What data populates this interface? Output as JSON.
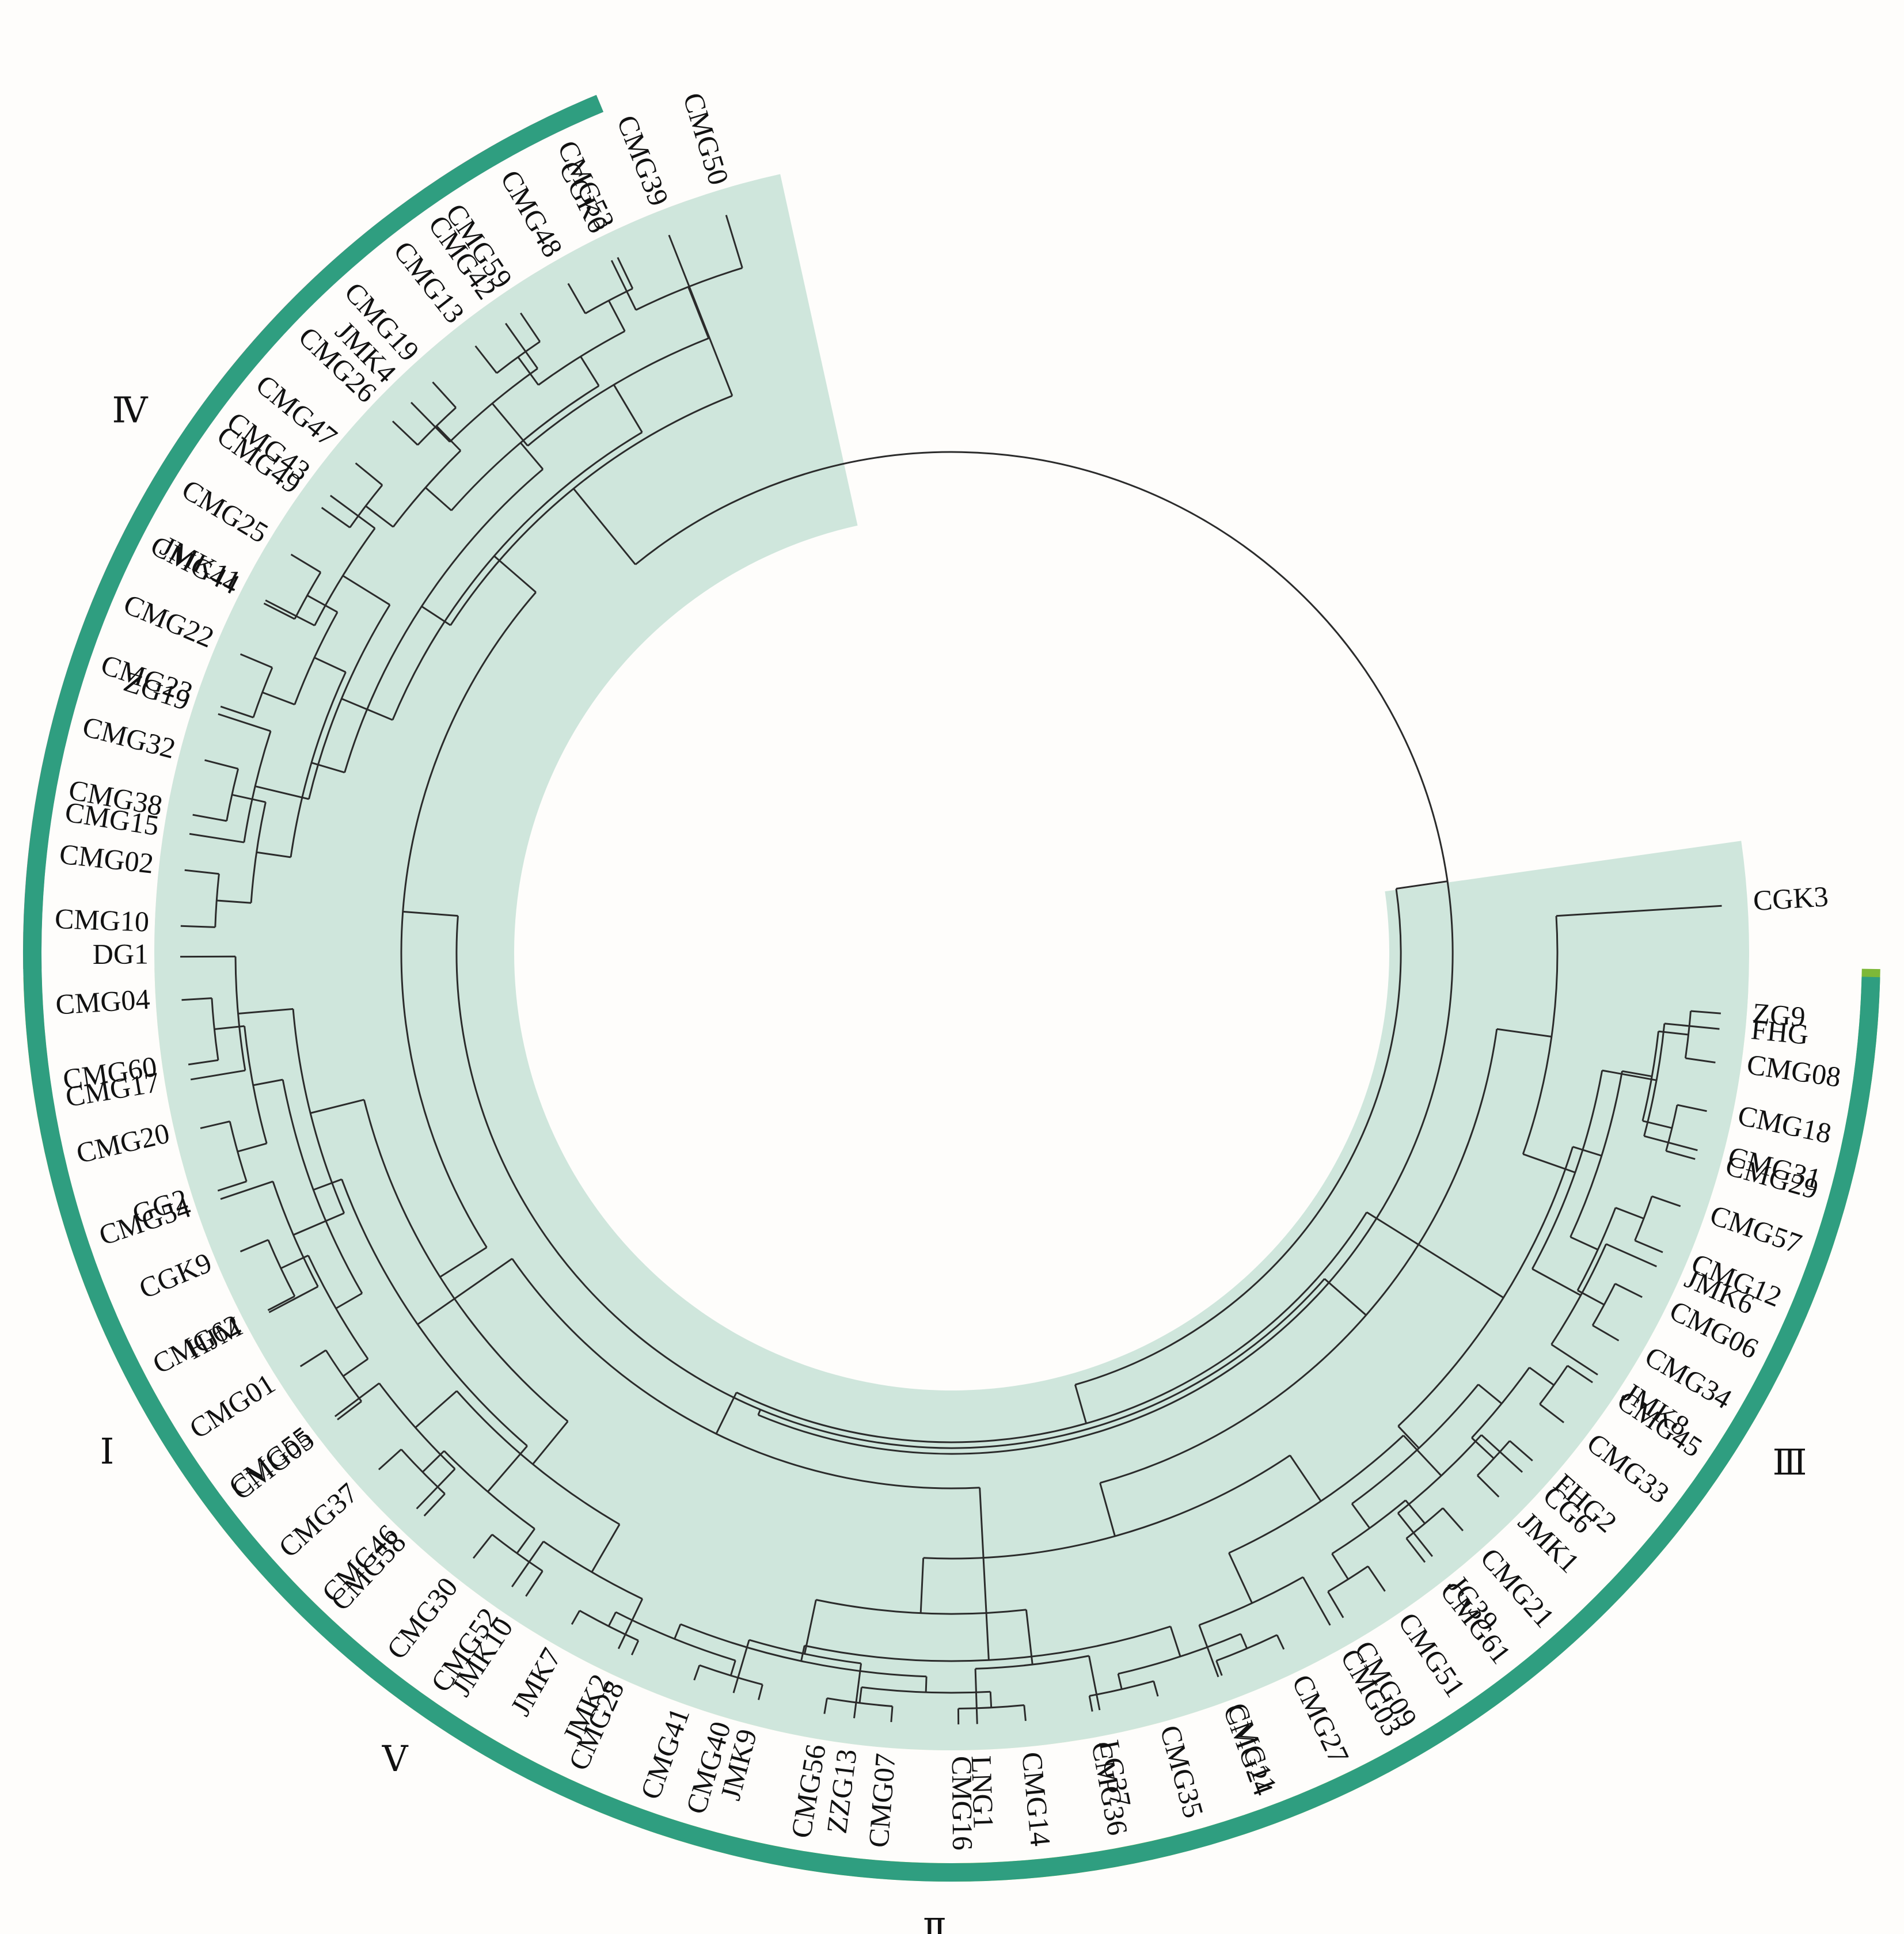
{
  "diagram": {
    "type": "circular-dendrogram"
  },
  "groups": [
    {
      "id": "I",
      "label": "Ⅰ",
      "ring_color": "#e8b040",
      "fill_color": "#f8ebcb",
      "leaves": [
        "CMG04",
        "CMG60",
        "CMG20",
        "GG2",
        "CGK9",
        "CMG62",
        "CMG01",
        "CMG05",
        "CMG37",
        "CMG58",
        "CMG30",
        "JMK10"
      ]
    },
    {
      "id": "II",
      "label": "Ⅱ",
      "ring_color": "#e8e030",
      "fill_color": "#f9f3c5",
      "leaves": [
        "JMK7",
        "CMG28",
        "CMG41",
        "JMK9",
        "CMG56",
        "CMG07",
        "CMG16",
        "CMG14",
        "CMG36",
        "CMG35",
        "CMG11",
        "CMG27"
      ]
    },
    {
      "id": "III",
      "label": "Ⅲ",
      "ring_color": "#7db838",
      "fill_color": "#e0ebc6",
      "leaves": [
        "CMG09",
        "CMG51",
        "CMG61",
        "CMG21",
        "JMK1",
        "FHG2",
        "CMG33",
        "CMG45",
        "CMG34",
        "CMG06",
        "CMG12",
        "CMG57",
        "CMG29",
        "CMG18",
        "CMG08",
        "ZG9"
      ]
    },
    {
      "id": "IV",
      "label": "Ⅳ",
      "ring_color": "#df6680",
      "fill_color": "#f8d9e2",
      "leaves": [
        "CMG10",
        "CMG02",
        "CMG38",
        "CMG32",
        "CMG23",
        "CMG22",
        "CMG44",
        "CMG25",
        "CMG49",
        "CMG47",
        "CMG26",
        "CMG19",
        "CMG13",
        "CMG59",
        "CMG48",
        "CMG53",
        "CMG39"
      ]
    },
    {
      "id": "V",
      "label": "Ⅴ",
      "ring_color": "#2f9e80",
      "fill_color": "#cfe6dc",
      "leaves": [
        "CMG50",
        "CGK6",
        "CMG42",
        "JMK4",
        "CMG43",
        "JMK11",
        "ZG19",
        "CMG15",
        "DG1",
        "CMG17",
        "CMG54",
        "HJM",
        "CMG55",
        "CMG46",
        "CMG52",
        "JMK2",
        "CMG40",
        "ZZG13",
        "LNG1",
        "LG37",
        "CMG24",
        "CMG03",
        "JG39",
        "CG6",
        "JMK8",
        "JMK6",
        "CMG31",
        "FHG",
        "CGK3"
      ]
    }
  ]
}
